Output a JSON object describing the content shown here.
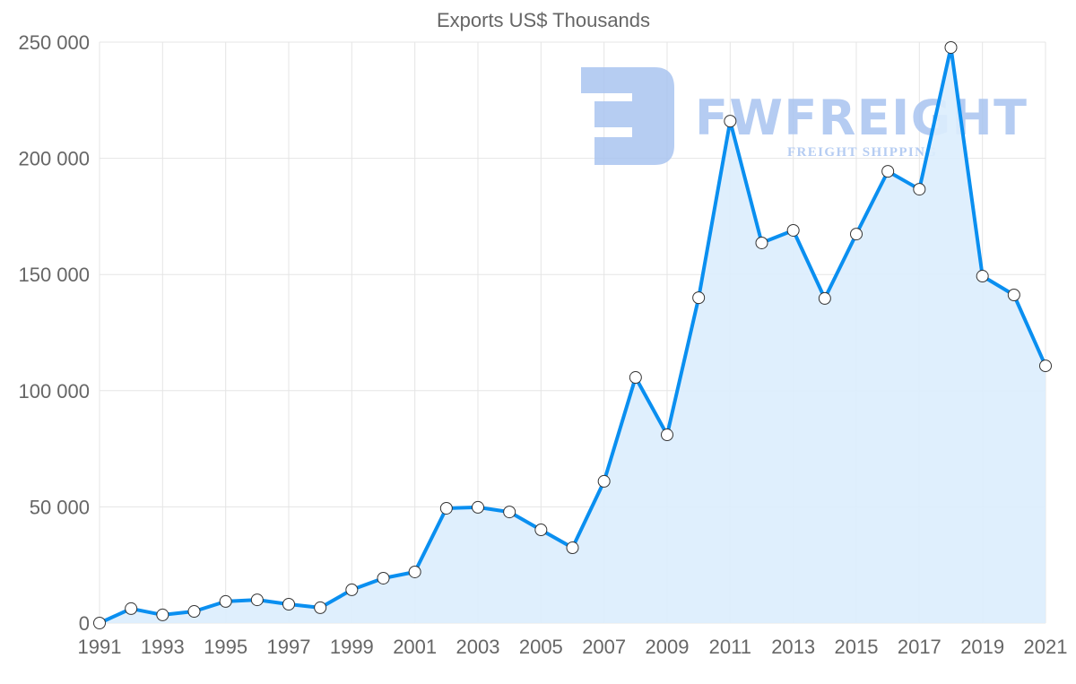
{
  "chart_data": {
    "type": "area",
    "title": "Exports US$ Thousands",
    "xlabel": "",
    "ylabel": "",
    "x": [
      1991,
      1992,
      1993,
      1994,
      1995,
      1996,
      1997,
      1998,
      1999,
      2000,
      2001,
      2002,
      2003,
      2004,
      2005,
      2006,
      2007,
      2008,
      2009,
      2010,
      2011,
      2012,
      2013,
      2014,
      2015,
      2016,
      2017,
      2018,
      2019,
      2020,
      2021
    ],
    "series": [
      {
        "name": "Exports US$ Thousands",
        "values": [
          0,
          6200,
          3500,
          5000,
          9300,
          10000,
          8100,
          6600,
          14300,
          19300,
          22000,
          49400,
          49800,
          47800,
          40100,
          32400,
          61000,
          105700,
          81000,
          140000,
          216000,
          163600,
          169000,
          139700,
          167400,
          194400,
          186700,
          247700,
          149300,
          141200,
          110700
        ]
      }
    ],
    "xlim": [
      1991,
      2021
    ],
    "ylim": [
      0,
      250000
    ],
    "yticks": [
      0,
      50000,
      100000,
      150000,
      200000,
      250000
    ],
    "ytick_labels": [
      "0",
      "50 000",
      "100 000",
      "150 000",
      "200 000",
      "250 000"
    ],
    "xtick_labels": [
      "1991",
      "1993",
      "1995",
      "1997",
      "1999",
      "2001",
      "2003",
      "2005",
      "2007",
      "2009",
      "2011",
      "2013",
      "2015",
      "2017",
      "2019",
      "2021"
    ],
    "grid": true,
    "legend": "none",
    "colors": {
      "line": "#0a8ff0",
      "fill": "#dbedfd",
      "grid": "#e5e5e5",
      "watermark": "#a9c4f0"
    }
  },
  "watermark": {
    "brand": "FWFREIGHT",
    "tagline": "FREIGHT SHIPPING"
  }
}
